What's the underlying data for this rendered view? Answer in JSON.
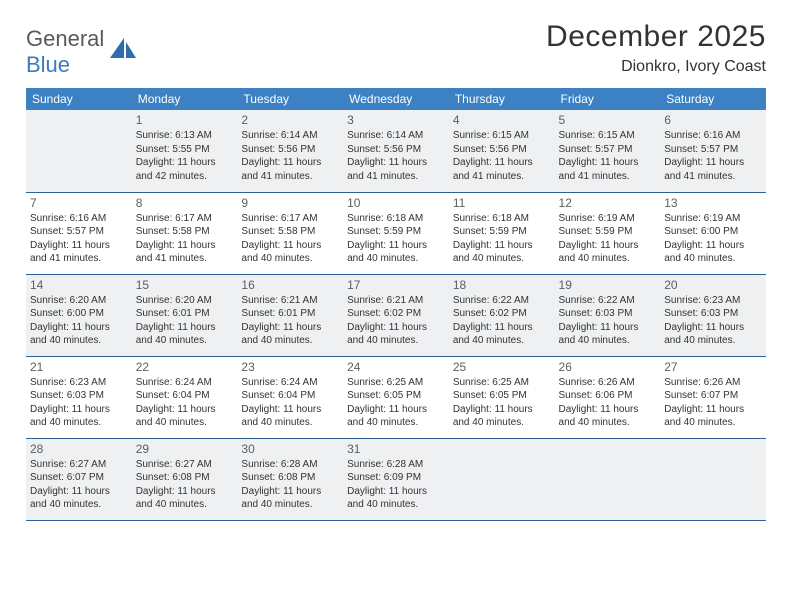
{
  "logo": {
    "word1": "General",
    "word2": "Blue"
  },
  "title": "December 2025",
  "location": "Dionkro, Ivory Coast",
  "colors": {
    "header_bg": "#3b81c3",
    "header_text": "#ffffff",
    "row_border": "#2e5f93",
    "shaded_row": "#eef0f2",
    "logo_gray": "#555a5f",
    "logo_blue": "#3b7bbf"
  },
  "day_headers": [
    "Sunday",
    "Monday",
    "Tuesday",
    "Wednesday",
    "Thursday",
    "Friday",
    "Saturday"
  ],
  "weeks": [
    {
      "shaded": true,
      "cells": [
        {
          "blank": true
        },
        {
          "n": "1",
          "sr": "6:13 AM",
          "ss": "5:55 PM",
          "dl": "11 hours and 42 minutes."
        },
        {
          "n": "2",
          "sr": "6:14 AM",
          "ss": "5:56 PM",
          "dl": "11 hours and 41 minutes."
        },
        {
          "n": "3",
          "sr": "6:14 AM",
          "ss": "5:56 PM",
          "dl": "11 hours and 41 minutes."
        },
        {
          "n": "4",
          "sr": "6:15 AM",
          "ss": "5:56 PM",
          "dl": "11 hours and 41 minutes."
        },
        {
          "n": "5",
          "sr": "6:15 AM",
          "ss": "5:57 PM",
          "dl": "11 hours and 41 minutes."
        },
        {
          "n": "6",
          "sr": "6:16 AM",
          "ss": "5:57 PM",
          "dl": "11 hours and 41 minutes."
        }
      ]
    },
    {
      "shaded": false,
      "cells": [
        {
          "n": "7",
          "sr": "6:16 AM",
          "ss": "5:57 PM",
          "dl": "11 hours and 41 minutes."
        },
        {
          "n": "8",
          "sr": "6:17 AM",
          "ss": "5:58 PM",
          "dl": "11 hours and 41 minutes."
        },
        {
          "n": "9",
          "sr": "6:17 AM",
          "ss": "5:58 PM",
          "dl": "11 hours and 40 minutes."
        },
        {
          "n": "10",
          "sr": "6:18 AM",
          "ss": "5:59 PM",
          "dl": "11 hours and 40 minutes."
        },
        {
          "n": "11",
          "sr": "6:18 AM",
          "ss": "5:59 PM",
          "dl": "11 hours and 40 minutes."
        },
        {
          "n": "12",
          "sr": "6:19 AM",
          "ss": "5:59 PM",
          "dl": "11 hours and 40 minutes."
        },
        {
          "n": "13",
          "sr": "6:19 AM",
          "ss": "6:00 PM",
          "dl": "11 hours and 40 minutes."
        }
      ]
    },
    {
      "shaded": true,
      "cells": [
        {
          "n": "14",
          "sr": "6:20 AM",
          "ss": "6:00 PM",
          "dl": "11 hours and 40 minutes."
        },
        {
          "n": "15",
          "sr": "6:20 AM",
          "ss": "6:01 PM",
          "dl": "11 hours and 40 minutes."
        },
        {
          "n": "16",
          "sr": "6:21 AM",
          "ss": "6:01 PM",
          "dl": "11 hours and 40 minutes."
        },
        {
          "n": "17",
          "sr": "6:21 AM",
          "ss": "6:02 PM",
          "dl": "11 hours and 40 minutes."
        },
        {
          "n": "18",
          "sr": "6:22 AM",
          "ss": "6:02 PM",
          "dl": "11 hours and 40 minutes."
        },
        {
          "n": "19",
          "sr": "6:22 AM",
          "ss": "6:03 PM",
          "dl": "11 hours and 40 minutes."
        },
        {
          "n": "20",
          "sr": "6:23 AM",
          "ss": "6:03 PM",
          "dl": "11 hours and 40 minutes."
        }
      ]
    },
    {
      "shaded": false,
      "cells": [
        {
          "n": "21",
          "sr": "6:23 AM",
          "ss": "6:03 PM",
          "dl": "11 hours and 40 minutes."
        },
        {
          "n": "22",
          "sr": "6:24 AM",
          "ss": "6:04 PM",
          "dl": "11 hours and 40 minutes."
        },
        {
          "n": "23",
          "sr": "6:24 AM",
          "ss": "6:04 PM",
          "dl": "11 hours and 40 minutes."
        },
        {
          "n": "24",
          "sr": "6:25 AM",
          "ss": "6:05 PM",
          "dl": "11 hours and 40 minutes."
        },
        {
          "n": "25",
          "sr": "6:25 AM",
          "ss": "6:05 PM",
          "dl": "11 hours and 40 minutes."
        },
        {
          "n": "26",
          "sr": "6:26 AM",
          "ss": "6:06 PM",
          "dl": "11 hours and 40 minutes."
        },
        {
          "n": "27",
          "sr": "6:26 AM",
          "ss": "6:07 PM",
          "dl": "11 hours and 40 minutes."
        }
      ]
    },
    {
      "shaded": true,
      "cells": [
        {
          "n": "28",
          "sr": "6:27 AM",
          "ss": "6:07 PM",
          "dl": "11 hours and 40 minutes."
        },
        {
          "n": "29",
          "sr": "6:27 AM",
          "ss": "6:08 PM",
          "dl": "11 hours and 40 minutes."
        },
        {
          "n": "30",
          "sr": "6:28 AM",
          "ss": "6:08 PM",
          "dl": "11 hours and 40 minutes."
        },
        {
          "n": "31",
          "sr": "6:28 AM",
          "ss": "6:09 PM",
          "dl": "11 hours and 40 minutes."
        },
        {
          "blank": true
        },
        {
          "blank": true
        },
        {
          "blank": true
        }
      ]
    }
  ],
  "labels": {
    "sunrise": "Sunrise: ",
    "sunset": "Sunset: ",
    "daylight": "Daylight: "
  }
}
